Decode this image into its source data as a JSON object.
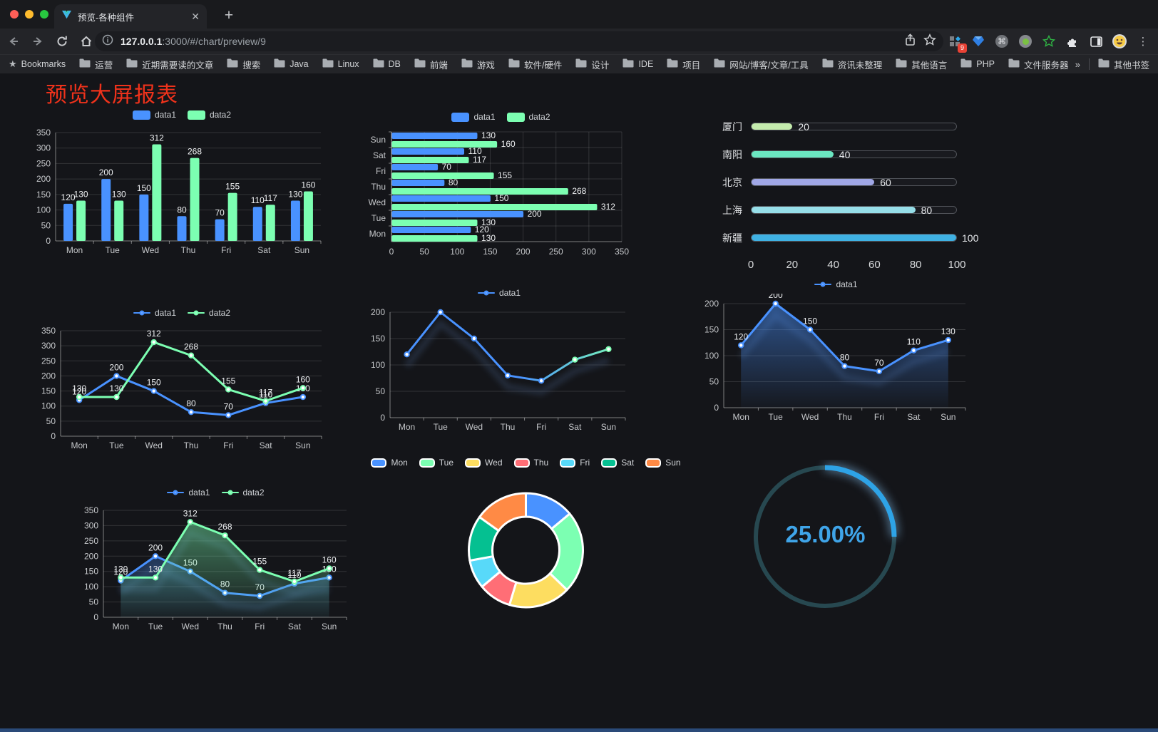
{
  "browser": {
    "tab": {
      "title": "预览-各种组件"
    },
    "url": {
      "host": "127.0.0.1",
      "rest": ":3000/#/chart/preview/9"
    },
    "extension_badge": "9",
    "bookmarks_bar": {
      "label": "Bookmarks",
      "folders": [
        "运营",
        "近期需要读的文章",
        "搜索",
        "Java",
        "Linux",
        "DB",
        "前端",
        "游戏",
        "软件/硬件",
        "设计",
        "IDE",
        "项目",
        "网站/博客/文章/工具",
        "资讯未整理",
        "其他语言",
        "PHP",
        "文件服务器"
      ],
      "overflow": "»",
      "other": "其他书签"
    }
  },
  "page": {
    "title": "预览大屏报表"
  },
  "colors": {
    "accent_blue": "#4992ff",
    "accent_green": "#7cffb2",
    "title_red": "#ef321b",
    "ring_blue": "#2ea3e6"
  },
  "chart_data": [
    {
      "id": "bar1",
      "type": "bar",
      "categories": [
        "Mon",
        "Tue",
        "Wed",
        "Thu",
        "Fri",
        "Sat",
        "Sun"
      ],
      "series": [
        {
          "name": "data1",
          "color": "#4992ff",
          "values": [
            120,
            200,
            150,
            80,
            70,
            110,
            130
          ]
        },
        {
          "name": "data2",
          "color": "#7cffb2",
          "values": [
            130,
            130,
            312,
            268,
            155,
            117,
            160
          ]
        }
      ],
      "ylim": [
        0,
        350
      ],
      "ystep": 50,
      "yticks": [
        0,
        50,
        100,
        150,
        200,
        250,
        300,
        350
      ],
      "grid": true,
      "legend_position": "top",
      "data_labels": true
    },
    {
      "id": "hbar1",
      "type": "hbar",
      "categories_top_to_bottom": [
        "Sun",
        "Sat",
        "Fri",
        "Thu",
        "Wed",
        "Tue",
        "Mon"
      ],
      "series": [
        {
          "name": "data1",
          "color": "#4992ff",
          "values": [
            130,
            110,
            70,
            80,
            150,
            200,
            120
          ]
        },
        {
          "name": "data2",
          "color": "#7cffb2",
          "values": [
            160,
            117,
            155,
            268,
            312,
            130,
            130
          ]
        }
      ],
      "xlim": [
        0,
        350
      ],
      "xstep": 50,
      "xticks": [
        0,
        50,
        100,
        150,
        200,
        250,
        300,
        350
      ],
      "grid": true,
      "legend_position": "top",
      "data_labels": true
    },
    {
      "id": "progress",
      "type": "progress-list",
      "max": 100,
      "axis_ticks": [
        0,
        20,
        40,
        60,
        80,
        100
      ],
      "items": [
        {
          "label": "厦门",
          "value": 20,
          "color": "#c4ebad"
        },
        {
          "label": "南阳",
          "value": 40,
          "color": "#6be6c1"
        },
        {
          "label": "北京",
          "value": 60,
          "color": "#a0a7e6"
        },
        {
          "label": "上海",
          "value": 80,
          "color": "#96dee8"
        },
        {
          "label": "新疆",
          "value": 100,
          "color": "#3fb1e3"
        }
      ]
    },
    {
      "id": "line2",
      "type": "line",
      "categories": [
        "Mon",
        "Tue",
        "Wed",
        "Thu",
        "Fri",
        "Sat",
        "Sun"
      ],
      "series": [
        {
          "name": "data1",
          "color": "#4992ff",
          "values": [
            120,
            200,
            150,
            80,
            70,
            110,
            130
          ]
        },
        {
          "name": "data2",
          "color": "#7cffb2",
          "values": [
            130,
            130,
            312,
            268,
            155,
            117,
            160
          ]
        }
      ],
      "ylim": [
        0,
        350
      ],
      "ystep": 50,
      "yticks": [
        0,
        50,
        100,
        150,
        200,
        250,
        300,
        350
      ],
      "grid": true,
      "legend_position": "top",
      "data_labels": true,
      "markers": true
    },
    {
      "id": "line1",
      "type": "line",
      "categories": [
        "Mon",
        "Tue",
        "Wed",
        "Thu",
        "Fri",
        "Sat",
        "Sun"
      ],
      "series": [
        {
          "name": "data1",
          "color": "#4992ff",
          "gradient": [
            "#4992ff",
            "#7cffb2"
          ],
          "values": [
            120,
            200,
            150,
            80,
            70,
            110,
            130
          ]
        }
      ],
      "ylim": [
        0,
        200
      ],
      "ystep": 50,
      "yticks": [
        0,
        50,
        100,
        150,
        200
      ],
      "grid": true,
      "legend_position": "top",
      "data_labels": false,
      "markers": true,
      "shadow": true
    },
    {
      "id": "area1",
      "type": "area",
      "categories": [
        "Mon",
        "Tue",
        "Wed",
        "Thu",
        "Fri",
        "Sat",
        "Sun"
      ],
      "series": [
        {
          "name": "data1",
          "color": "#4992ff",
          "area": true,
          "values": [
            120,
            200,
            150,
            80,
            70,
            110,
            130
          ]
        }
      ],
      "ylim": [
        0,
        200
      ],
      "ystep": 50,
      "yticks": [
        0,
        50,
        100,
        150,
        200
      ],
      "grid": true,
      "legend_position": "top",
      "data_labels": true,
      "markers": true,
      "shadow": true
    },
    {
      "id": "area2",
      "type": "area",
      "categories": [
        "Mon",
        "Tue",
        "Wed",
        "Thu",
        "Fri",
        "Sat",
        "Sun"
      ],
      "series": [
        {
          "name": "data1",
          "color": "#4992ff",
          "area": true,
          "values": [
            120,
            200,
            150,
            80,
            70,
            110,
            130
          ]
        },
        {
          "name": "data2",
          "color": "#7cffb2",
          "area": true,
          "values": [
            130,
            130,
            312,
            268,
            155,
            117,
            160
          ]
        }
      ],
      "ylim": [
        0,
        350
      ],
      "ystep": 50,
      "yticks": [
        0,
        50,
        100,
        150,
        200,
        250,
        300,
        350
      ],
      "grid": true,
      "legend_position": "top",
      "data_labels": true,
      "markers": true,
      "shadow": true
    },
    {
      "id": "donut",
      "type": "donut",
      "labels": [
        "Mon",
        "Tue",
        "Wed",
        "Thu",
        "Fri",
        "Sat",
        "Sun"
      ],
      "values": [
        120,
        200,
        150,
        80,
        70,
        110,
        130
      ],
      "colors": [
        "#4992ff",
        "#7cffb2",
        "#fddd60",
        "#ff6e76",
        "#58d9f9",
        "#05c091",
        "#ff8a45"
      ],
      "legend_position": "top"
    },
    {
      "id": "ring",
      "type": "ring",
      "percent": 25,
      "label": "25.00%",
      "color": "#2ea3e6",
      "track_color": "#274850"
    }
  ]
}
